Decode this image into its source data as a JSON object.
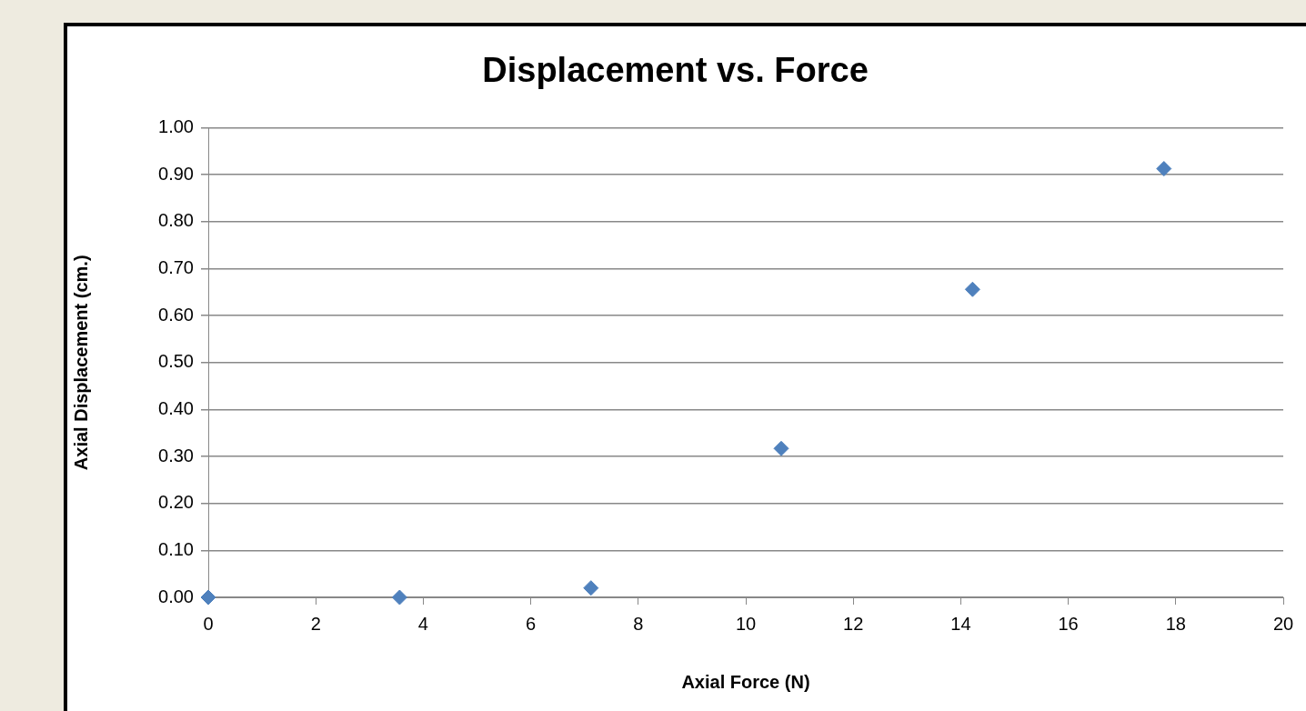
{
  "chart_data": {
    "type": "scatter",
    "title": "Displacement vs. Force",
    "xlabel": "Axial Force (N)",
    "ylabel": "Axial Displacement (cm.)",
    "series": [
      {
        "color": "#4f81bd",
        "x": [
          0,
          3.56,
          7.12,
          10.66,
          14.22,
          17.78
        ],
        "values": [
          0,
          0,
          0.02,
          0.317,
          0.656,
          0.913
        ]
      }
    ],
    "xlim": [
      0,
      20
    ],
    "xticks": [
      0,
      2,
      4,
      6,
      8,
      10,
      12,
      14,
      16,
      18,
      20
    ],
    "ylim": [
      0,
      1
    ],
    "yticks": [
      {
        "value": 0,
        "label": "0.00"
      },
      {
        "value": 0.1,
        "label": "0.10"
      },
      {
        "value": 0.2,
        "label": "0.20"
      },
      {
        "value": 0.3,
        "label": "0.30"
      },
      {
        "value": 0.4,
        "label": "0.40"
      },
      {
        "value": 0.5,
        "label": "0.50"
      },
      {
        "value": 0.6,
        "label": "0.60"
      },
      {
        "value": 0.7,
        "label": "0.70"
      },
      {
        "value": 0.8,
        "label": "0.80"
      },
      {
        "value": 0.9,
        "label": "0.90"
      },
      {
        "value": 1,
        "label": "1.00"
      }
    ],
    "grid": "y",
    "legend": false,
    "marker": "diamond"
  }
}
